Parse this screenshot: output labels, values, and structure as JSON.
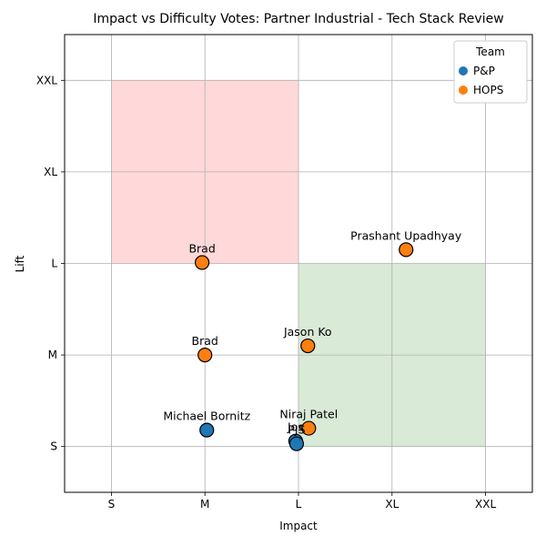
{
  "chart_data": {
    "type": "scatter",
    "title": "Impact vs Difficulty Votes: Partner Industrial - Tech Stack Review",
    "xlabel": "Impact",
    "ylabel": "Lift",
    "x_ticks": [
      "S",
      "M",
      "L",
      "XL",
      "XXL"
    ],
    "y_ticks": [
      "S",
      "M",
      "L",
      "XL",
      "XXL"
    ],
    "x_scale": {
      "S": 1,
      "M": 2,
      "L": 3,
      "XL": 4,
      "XXL": 5
    },
    "y_scale": {
      "S": 1,
      "M": 2,
      "L": 3,
      "XL": 4,
      "XXL": 5
    },
    "xlim": [
      0.5,
      5.5
    ],
    "ylim": [
      0.5,
      5.5
    ],
    "grid": true,
    "legend": {
      "title": "Team",
      "position": "top-right",
      "entries": [
        "P&P",
        "HOPS"
      ]
    },
    "regions": [
      {
        "x": [
          1,
          3
        ],
        "y": [
          3,
          5
        ],
        "color": "#ffd9d9"
      },
      {
        "x": [
          3,
          5
        ],
        "y": [
          1,
          3
        ],
        "color": "#d9ead7"
      }
    ],
    "series": [
      {
        "name": "P&P",
        "color": "#1f77b4",
        "points": [
          {
            "label": "Michael Bornitz",
            "x": 2.02,
            "y": 1.18
          },
          {
            "label": "Jos",
            "x": 2.97,
            "y": 1.06
          },
          {
            "label": "PJS",
            "x": 2.98,
            "y": 1.03
          }
        ]
      },
      {
        "name": "HOPS",
        "color": "#ff7f0e",
        "points": [
          {
            "label": "Prashant Upadhyay",
            "x": 4.15,
            "y": 3.15
          },
          {
            "label": "Brad",
            "x": 1.97,
            "y": 3.01
          },
          {
            "label": "Brad",
            "x": 2.0,
            "y": 2.0
          },
          {
            "label": "Jason Ko",
            "x": 3.1,
            "y": 2.1
          },
          {
            "label": "Niraj Patel",
            "x": 3.11,
            "y": 1.2
          }
        ]
      }
    ]
  }
}
